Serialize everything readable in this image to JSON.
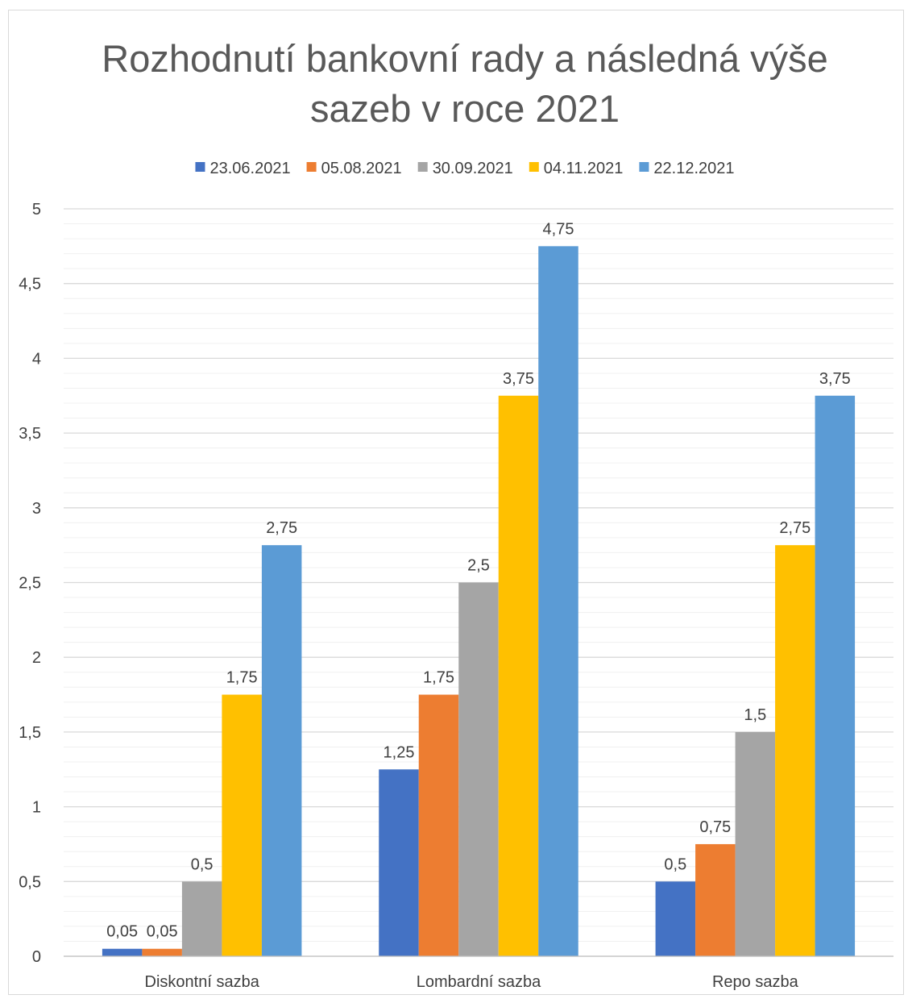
{
  "chart_data": {
    "type": "bar",
    "title_lines": [
      "Rozhodnutí bankovní rady a následná výše",
      "sazeb v roce 2021"
    ],
    "categories": [
      "Diskontní sazba",
      "Lombardní sazba",
      "Repo sazba"
    ],
    "series": [
      {
        "name": "23.06.2021",
        "color": "#4472C4",
        "values": [
          0.05,
          1.25,
          0.5
        ]
      },
      {
        "name": "05.08.2021",
        "color": "#ED7D31",
        "values": [
          0.05,
          1.75,
          0.75
        ]
      },
      {
        "name": "30.09.2021",
        "color": "#A5A5A5",
        "values": [
          0.5,
          2.5,
          1.5
        ]
      },
      {
        "name": "04.11.2021",
        "color": "#FFC000",
        "values": [
          1.75,
          3.75,
          2.75
        ]
      },
      {
        "name": "22.12.2021",
        "color": "#5B9BD5",
        "values": [
          2.75,
          4.75,
          3.75
        ]
      }
    ],
    "data_labels": [
      [
        "0,05",
        "1,25",
        "0,5"
      ],
      [
        "0,05",
        "1,75",
        "0,75"
      ],
      [
        "0,5",
        "2,5",
        "1,5"
      ],
      [
        "1,75",
        "3,75",
        "2,75"
      ],
      [
        "2,75",
        "4,75",
        "3,75"
      ]
    ],
    "y_ticks": [
      "0",
      "0,5",
      "1",
      "1,5",
      "2",
      "2,5",
      "3",
      "3,5",
      "4",
      "4,5",
      "5"
    ],
    "ylim": [
      0,
      5
    ],
    "major_step": 0.5,
    "minor_step": 0.1,
    "grid": true,
    "legend_position": "top",
    "xlabel": "",
    "ylabel": ""
  }
}
